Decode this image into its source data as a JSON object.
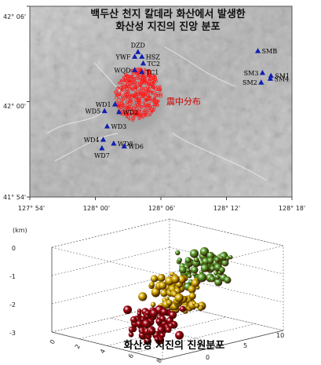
{
  "map": {
    "title_line1": "백두산 천지 칼데라 화산에서 발생한",
    "title_line2": "화산성 지진의 진앙 분포",
    "annotation": "震中分布",
    "lat_ticks": [
      "42° 06'",
      "42° 00'",
      "41° 54'"
    ],
    "lon_ticks": [
      "127° 54'",
      "128° 00'",
      "128° 06'",
      "128° 12'",
      "128° 18'"
    ],
    "colors": {
      "epicenter": "#ff1a1a",
      "station": "#1020b0",
      "terrain": "#bcbcbc"
    }
  },
  "plot3d": {
    "z_unit": "(km)",
    "z_ticks": [
      "0",
      "-1",
      "-2",
      "-3"
    ],
    "x_ticks": [
      "0",
      "2",
      "4",
      "6",
      "8"
    ],
    "y_ticks": [
      "0",
      "5",
      "10"
    ],
    "caption": "화산성 지진의 진원분포",
    "colors": {
      "shallow": "#5aa02c",
      "mid": "#d8b000",
      "deep": "#a00010"
    }
  },
  "chart_data": [
    {
      "type": "scatter",
      "title": "백두산 천지 칼데라 화산에서 발생한 화산성 지진의 진앙 분포",
      "xlim": [
        "127° 54'",
        "128° 18'"
      ],
      "ylim": [
        "41° 54'",
        "42° 06'"
      ],
      "stations": [
        {
          "name": "DZD",
          "lon": 128.065,
          "lat": 42.052
        },
        {
          "name": "YWF",
          "lon": 128.06,
          "lat": 42.047
        },
        {
          "name": "HSZ",
          "lon": 128.071,
          "lat": 42.047
        },
        {
          "name": "TC2",
          "lon": 128.073,
          "lat": 42.04
        },
        {
          "name": "WQD",
          "lon": 128.06,
          "lat": 42.033
        },
        {
          "name": "TC1",
          "lon": 128.071,
          "lat": 42.031
        },
        {
          "name": "SMB",
          "lon": 128.248,
          "lat": 42.053
        },
        {
          "name": "SM3",
          "lon": 128.255,
          "lat": 42.03
        },
        {
          "name": "SM1",
          "lon": 128.268,
          "lat": 42.027
        },
        {
          "name": "SM4",
          "lon": 128.267,
          "lat": 42.024
        },
        {
          "name": "SM2",
          "lon": 128.253,
          "lat": 42.02
        },
        {
          "name": "WD1",
          "lon": 128.03,
          "lat": 41.997
        },
        {
          "name": "WD5",
          "lon": 128.014,
          "lat": 41.99
        },
        {
          "name": "WD2",
          "lon": 128.036,
          "lat": 41.989
        },
        {
          "name": "WD3",
          "lon": 128.018,
          "lat": 41.974
        },
        {
          "name": "WD4",
          "lon": 128.012,
          "lat": 41.96
        },
        {
          "name": "WD8",
          "lon": 128.028,
          "lat": 41.956
        },
        {
          "name": "WD6",
          "lon": 128.044,
          "lat": 41.953
        },
        {
          "name": "WD7",
          "lon": 128.01,
          "lat": 41.951
        }
      ],
      "epicenter_region": {
        "lon_range": [
          128.03,
          128.1
        ],
        "lat_range": [
          41.98,
          42.035
        ]
      }
    },
    {
      "type": "scatter",
      "title": "화산성 지진의 진원분포",
      "zlabel": "(km)",
      "xlim": [
        0,
        8
      ],
      "ylim": [
        0,
        10
      ],
      "zlim": [
        -3,
        0
      ],
      "clusters": [
        {
          "x": 5.5,
          "y": 6.5,
          "depth": -0.7,
          "color": "shallow"
        },
        {
          "x": 4.5,
          "y": 5.0,
          "depth": -1.6,
          "color": "mid"
        },
        {
          "x": 4.0,
          "y": 4.0,
          "depth": -2.6,
          "color": "deep"
        }
      ]
    }
  ]
}
